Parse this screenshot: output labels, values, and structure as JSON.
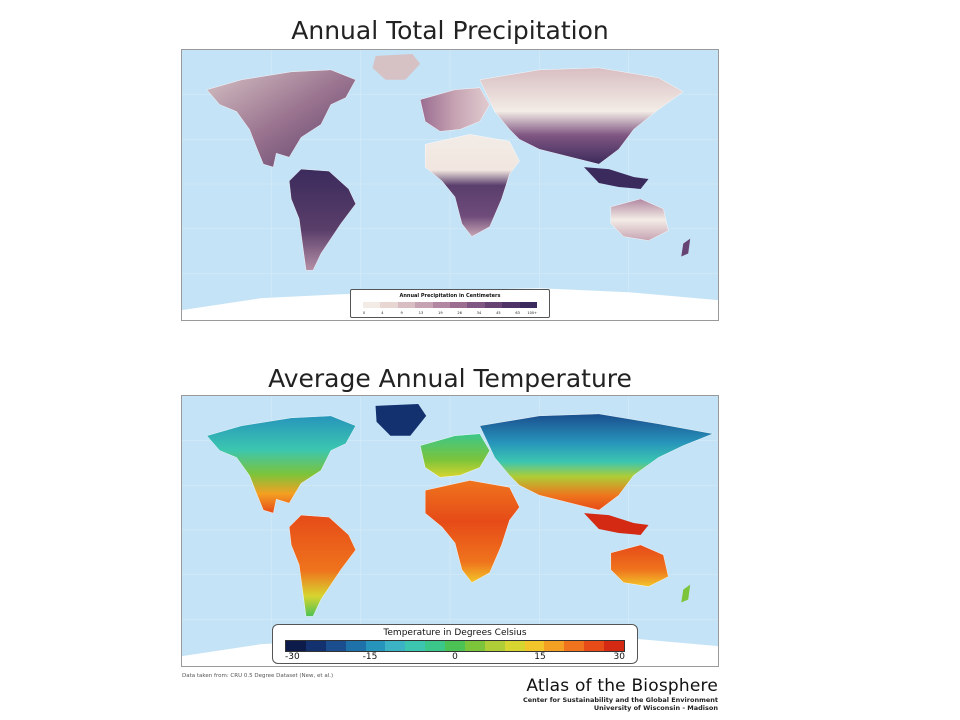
{
  "precip_map": {
    "title": "Annual Total Precipitation",
    "legend_title": "Annual Precipitation in Centimeters",
    "legend_ticks": [
      "0",
      "4",
      "9",
      "13",
      "19",
      "26",
      "34",
      "45",
      "63",
      "100+"
    ],
    "legend_colors": [
      "#f3ece6",
      "#e8d6d2",
      "#d8bec2",
      "#c6a3b2",
      "#b187a1",
      "#9a6d91",
      "#805682",
      "#674374",
      "#4f3366",
      "#3b2b5c"
    ]
  },
  "temp_map": {
    "title": "Average Annual Temperature",
    "legend_title": "Temperature in Degrees Celsius",
    "legend_ticks": [
      "-30",
      "-15",
      "0",
      "15",
      "30"
    ],
    "legend_colors": [
      "#0d1b4b",
      "#13306f",
      "#1a4e8e",
      "#1f72a9",
      "#2795bb",
      "#3bb3c4",
      "#3cc6b0",
      "#3bc78a",
      "#4cc255",
      "#7cc43a",
      "#aecd36",
      "#d7d52f",
      "#f2c52a",
      "#f4a023",
      "#ef741d",
      "#e64b18",
      "#d42a13"
    ]
  },
  "footer": {
    "source": "Data taken from: CRU 0.5 Degree Dataset (New, et al.)",
    "brand_name": "Atlas of the Biosphere",
    "brand_line1": "Center for Sustainability and the Global Environment",
    "brand_line2": "University of Wisconsin - Madison"
  },
  "colors": {
    "ocean": "#c4e3f6",
    "antarctica": "#ffffff"
  }
}
